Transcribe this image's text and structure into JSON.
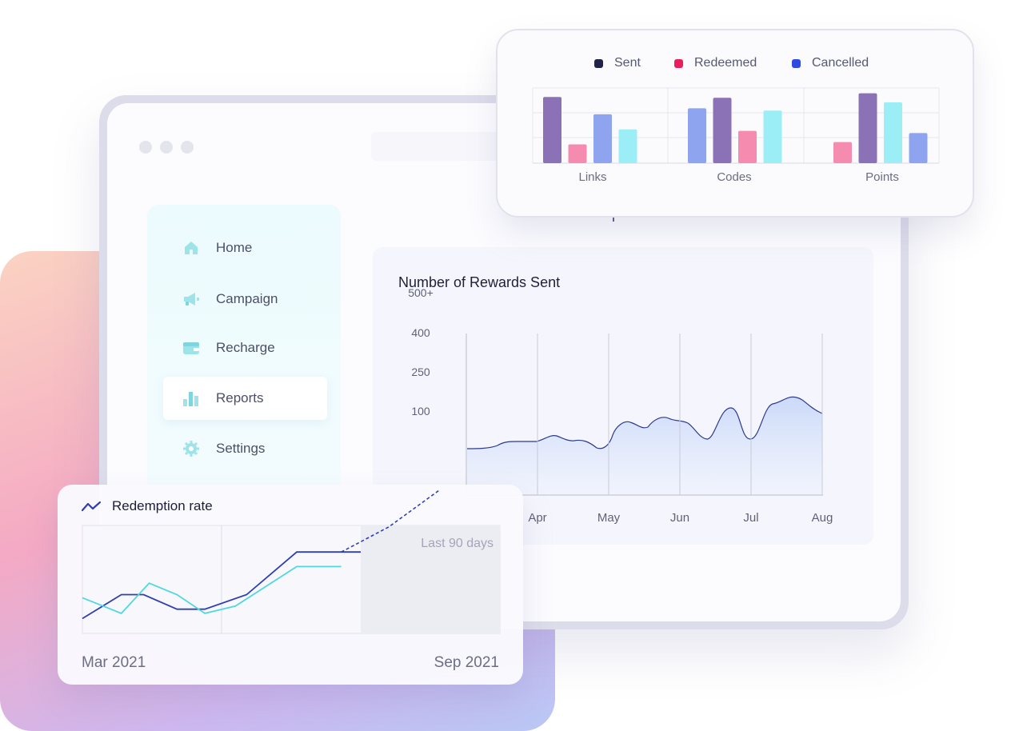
{
  "colors": {
    "sent": "#8b72b6",
    "redeemed": "#f58caf",
    "cancelled": "#8ea4ee",
    "cyan": "#9ceef6",
    "legend_sent": "#22214c",
    "legend_redeemed": "#ea1e5f",
    "legend_cancelled": "#2f49e4",
    "line_dark": "#2f3fb3",
    "line_teal": "#4fd8de"
  },
  "sidebar": {
    "items": [
      {
        "label": "Home",
        "icon": "home-icon"
      },
      {
        "label": "Campaign",
        "icon": "megaphone-icon"
      },
      {
        "label": "Recharge",
        "icon": "wallet-icon"
      },
      {
        "label": "Reports",
        "icon": "bar-chart-icon",
        "active": true
      },
      {
        "label": "Settings",
        "icon": "gear-icon"
      }
    ]
  },
  "legend_card": {
    "legend": [
      {
        "label": "Sent"
      },
      {
        "label": "Redeemed"
      },
      {
        "label": "Cancelled"
      }
    ]
  },
  "chart_data": [
    {
      "type": "bar",
      "categories": [
        "Links",
        "Codes",
        "Points"
      ],
      "series": [
        {
          "name": "Sent",
          "values": [
            88,
            87,
            93
          ]
        },
        {
          "name": "Redeemed",
          "values": [
            25,
            43,
            28
          ]
        },
        {
          "name": "Cancelled",
          "values": [
            65,
            73,
            40
          ]
        }
      ],
      "extra_bars": [
        {
          "category": "Links",
          "color": "cyan",
          "value": 45
        },
        {
          "category": "Codes",
          "color": "cyan",
          "value": 70
        },
        {
          "category": "Points",
          "color": "cyan",
          "value": 81
        }
      ],
      "legend_position": "top",
      "grid": true
    },
    {
      "type": "area",
      "title": "Number of Rewards Sent",
      "x_ticks": [
        "Apr",
        "May",
        "Jun",
        "Jul",
        "Aug"
      ],
      "y_ticks": [
        "500+",
        "400",
        "250",
        "100"
      ],
      "grid": true
    },
    {
      "type": "line",
      "title": "Redemption rate",
      "x_range_labels": [
        "Mar 2021",
        "Sep 2021"
      ],
      "annotation": "Last 90 days",
      "series": [
        {
          "points": [
            [
              0,
              0.22
            ],
            [
              0.14,
              0.45
            ],
            [
              0.22,
              0.45
            ],
            [
              0.34,
              0.31
            ],
            [
              0.44,
              0.31
            ],
            [
              0.59,
              0.45
            ],
            [
              0.77,
              0.86
            ],
            [
              0.93,
              0.86
            ],
            [
              1.0,
              0.86
            ]
          ]
        },
        {
          "points": [
            [
              0,
              0.42
            ],
            [
              0.14,
              0.27
            ],
            [
              0.24,
              0.56
            ],
            [
              0.34,
              0.45
            ],
            [
              0.44,
              0.27
            ],
            [
              0.55,
              0.34
            ],
            [
              0.77,
              0.72
            ],
            [
              0.93,
              0.72
            ]
          ]
        }
      ],
      "forecast": [
        [
          0.93,
          0.86
        ],
        [
          1.1,
          1.1
        ],
        [
          1.28,
          1.45
        ]
      ]
    }
  ]
}
